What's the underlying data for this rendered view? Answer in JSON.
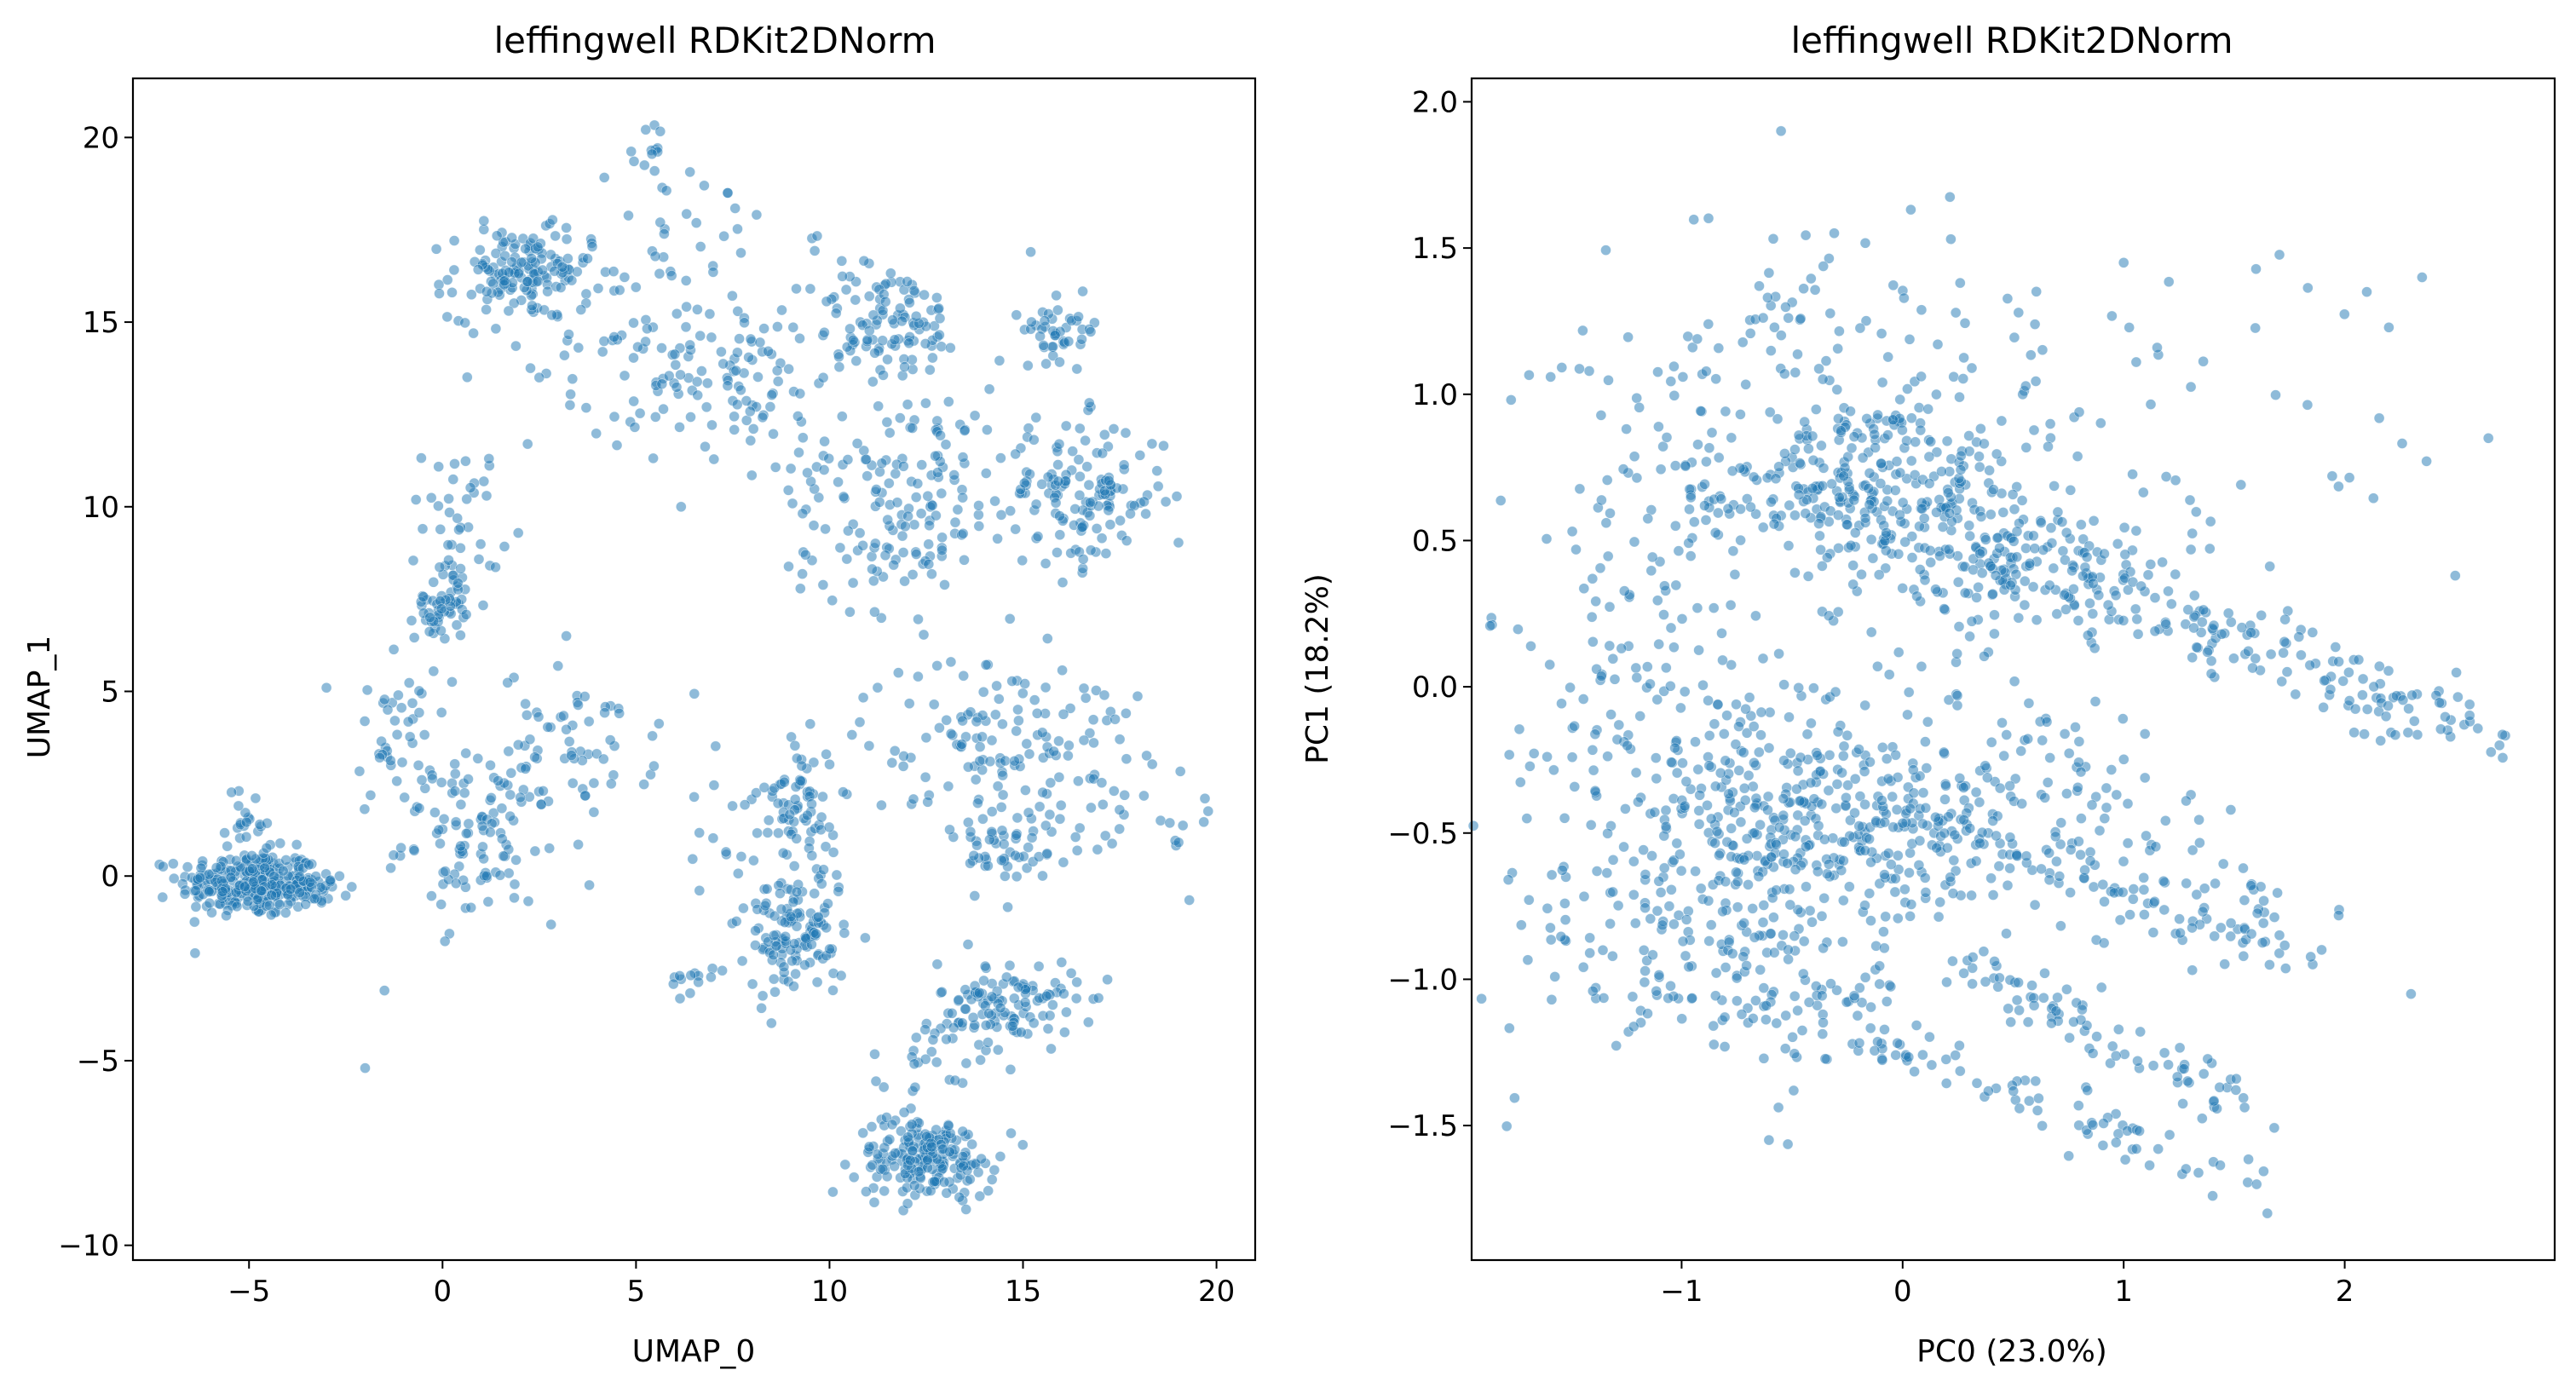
{
  "chart_data": [
    {
      "type": "scatter",
      "title": "leffingwell RDKit2DNorm",
      "xlabel": "UMAP_0",
      "ylabel": "UMAP_1",
      "xlim": [
        -8,
        21
      ],
      "ylim": [
        -10.4,
        21.6
      ],
      "xticks": [
        -5,
        0,
        5,
        10,
        15,
        20
      ],
      "yticks": [
        -10,
        -5,
        0,
        5,
        10,
        15,
        20
      ],
      "xtick_labels": [
        "−5",
        "0",
        "5",
        "10",
        "15",
        "20"
      ],
      "ytick_labels": [
        "−10",
        "−5",
        "0",
        "5",
        "10",
        "15",
        "20"
      ],
      "color": "#1f77b4",
      "clusters": [
        {
          "x": -5.0,
          "y": -0.2,
          "sx": 0.9,
          "sy": 0.45,
          "n": 260
        },
        {
          "x": -3.6,
          "y": -0.3,
          "sx": 0.6,
          "sy": 0.3,
          "n": 60
        },
        {
          "x": -5.0,
          "y": 1.4,
          "sx": 0.3,
          "sy": 0.5,
          "n": 22
        },
        {
          "x": -1.2,
          "y": 3.6,
          "sx": 0.5,
          "sy": 1.0,
          "n": 45
        },
        {
          "x": 1.0,
          "y": 1.0,
          "sx": 1.0,
          "sy": 1.1,
          "n": 110
        },
        {
          "x": 3.5,
          "y": 3.6,
          "sx": 1.0,
          "sy": 1.0,
          "n": 60
        },
        {
          "x": 0.0,
          "y": 7.4,
          "sx": 0.35,
          "sy": 0.5,
          "n": 55
        },
        {
          "x": 0.5,
          "y": 9.5,
          "sx": 0.5,
          "sy": 1.1,
          "n": 40
        },
        {
          "x": 2.0,
          "y": 16.3,
          "sx": 0.9,
          "sy": 0.6,
          "n": 140
        },
        {
          "x": 4.5,
          "y": 14.2,
          "sx": 1.8,
          "sy": 1.6,
          "n": 70
        },
        {
          "x": 7.8,
          "y": 13.5,
          "sx": 1.1,
          "sy": 1.0,
          "n": 80
        },
        {
          "x": 6.0,
          "y": 17.5,
          "sx": 1.6,
          "sy": 1.0,
          "n": 35
        },
        {
          "x": 5.5,
          "y": 19.5,
          "sx": 0.2,
          "sy": 0.5,
          "n": 12
        },
        {
          "x": 11.5,
          "y": 15.0,
          "sx": 1.0,
          "sy": 0.8,
          "n": 110
        },
        {
          "x": 12.0,
          "y": 11.0,
          "sx": 1.5,
          "sy": 1.1,
          "n": 110
        },
        {
          "x": 11.5,
          "y": 8.8,
          "sx": 1.2,
          "sy": 0.8,
          "n": 55
        },
        {
          "x": 16.0,
          "y": 14.8,
          "sx": 0.5,
          "sy": 0.4,
          "n": 45
        },
        {
          "x": 16.5,
          "y": 10.3,
          "sx": 1.1,
          "sy": 1.0,
          "n": 140
        },
        {
          "x": 9.2,
          "y": 2.0,
          "sx": 0.5,
          "sy": 0.8,
          "n": 70
        },
        {
          "x": 9.2,
          "y": -1.6,
          "sx": 0.6,
          "sy": 0.9,
          "n": 120
        },
        {
          "x": 7.8,
          "y": 0.2,
          "sx": 0.8,
          "sy": 1.4,
          "n": 30
        },
        {
          "x": 14.5,
          "y": 3.8,
          "sx": 1.8,
          "sy": 1.1,
          "n": 140
        },
        {
          "x": 14.5,
          "y": 0.8,
          "sx": 0.7,
          "sy": 0.7,
          "n": 55
        },
        {
          "x": 18.0,
          "y": 1.2,
          "sx": 1.0,
          "sy": 0.7,
          "n": 20
        },
        {
          "x": 14.6,
          "y": -3.5,
          "sx": 0.9,
          "sy": 0.6,
          "n": 120
        },
        {
          "x": 12.5,
          "y": -5.0,
          "sx": 0.7,
          "sy": 0.5,
          "n": 20
        },
        {
          "x": 12.5,
          "y": -7.6,
          "sx": 0.9,
          "sy": 0.55,
          "n": 200
        },
        {
          "x": 6.5,
          "y": -2.8,
          "sx": 0.3,
          "sy": 0.25,
          "n": 12
        }
      ],
      "outliers": [
        [
          -2.0,
          -5.2
        ],
        [
          -1.5,
          -3.1
        ],
        [
          2.2,
          11.7
        ],
        [
          2.5,
          13.5
        ],
        [
          0.8,
          14.7
        ],
        [
          19.7,
          2.1
        ],
        [
          15.2,
          16.9
        ],
        [
          1.2,
          11.3
        ],
        [
          3.2,
          6.5
        ],
        [
          -3.0,
          5.1
        ]
      ]
    },
    {
      "type": "scatter",
      "title": "leffingwell RDKit2DNorm",
      "xlabel": "PC0 (23.0%)",
      "ylabel": "PC1 (18.2%)",
      "xlim": [
        -1.95,
        2.95
      ],
      "ylim": [
        -1.96,
        2.08
      ],
      "xticks": [
        -1,
        0,
        1,
        2
      ],
      "yticks": [
        -1.5,
        -1.0,
        -0.5,
        0.0,
        0.5,
        1.0,
        1.5,
        2.0
      ],
      "xtick_labels": [
        "−1",
        "0",
        "1",
        "2"
      ],
      "ytick_labels": [
        "−1.5",
        "−1.0",
        "−0.5",
        "0.0",
        "0.5",
        "1.0",
        "1.5",
        "2.0"
      ],
      "color": "#1f77b4",
      "clusters": [
        {
          "x": -0.2,
          "y": 0.65,
          "sx": 0.5,
          "sy": 0.13,
          "n": 300
        },
        {
          "x": 0.6,
          "y": 0.4,
          "sx": 0.3,
          "sy": 0.11,
          "n": 160
        },
        {
          "x": -0.3,
          "y": 1.05,
          "sx": 0.55,
          "sy": 0.28,
          "n": 160
        },
        {
          "x": -1.2,
          "y": 0.25,
          "sx": 0.3,
          "sy": 0.35,
          "n": 80
        },
        {
          "x": -0.4,
          "y": -0.5,
          "sx": 0.5,
          "sy": 0.17,
          "n": 320
        },
        {
          "x": -0.7,
          "y": -0.15,
          "sx": 0.55,
          "sy": 0.2,
          "n": 130
        },
        {
          "x": -1.0,
          "y": -0.85,
          "sx": 0.4,
          "sy": 0.22,
          "n": 150
        },
        {
          "x": -0.6,
          "y": -1.05,
          "sx": 0.35,
          "sy": 0.15,
          "n": 70
        },
        {
          "x": 0.6,
          "y": -0.5,
          "sx": 0.5,
          "sy": 0.35,
          "n": 60
        },
        {
          "x": 1.2,
          "y": 1.0,
          "sx": 0.6,
          "sy": 0.25,
          "n": 40
        }
      ],
      "streaks": [
        {
          "x0": 0.9,
          "y0": 0.35,
          "x1": 2.6,
          "y1": -0.15,
          "n": 140,
          "jx": 0.12,
          "jy": 0.05
        },
        {
          "x0": -0.2,
          "y0": -0.35,
          "x1": 1.8,
          "y1": -0.95,
          "n": 110,
          "jx": 0.12,
          "jy": 0.04
        },
        {
          "x0": 0.3,
          "y0": -0.95,
          "x1": 1.6,
          "y1": -1.45,
          "n": 80,
          "jx": 0.1,
          "jy": 0.04
        },
        {
          "x0": -0.2,
          "y0": -1.2,
          "x1": 1.6,
          "y1": -1.7,
          "n": 70,
          "jx": 0.1,
          "jy": 0.04
        },
        {
          "x0": 0.5,
          "y0": -0.2,
          "x1": 1.8,
          "y1": -0.9,
          "n": 60,
          "jx": 0.12,
          "jy": 0.08
        }
      ],
      "outliers": [
        [
          -0.55,
          1.9
        ],
        [
          2.35,
          1.4
        ],
        [
          2.65,
          0.85
        ],
        [
          2.3,
          -1.05
        ],
        [
          2.7,
          -0.2
        ],
        [
          1.65,
          -1.8
        ],
        [
          2.1,
          1.35
        ],
        [
          -1.7,
          -0.45
        ],
        [
          1.0,
          1.45
        ],
        [
          2.5,
          0.38
        ]
      ]
    }
  ]
}
